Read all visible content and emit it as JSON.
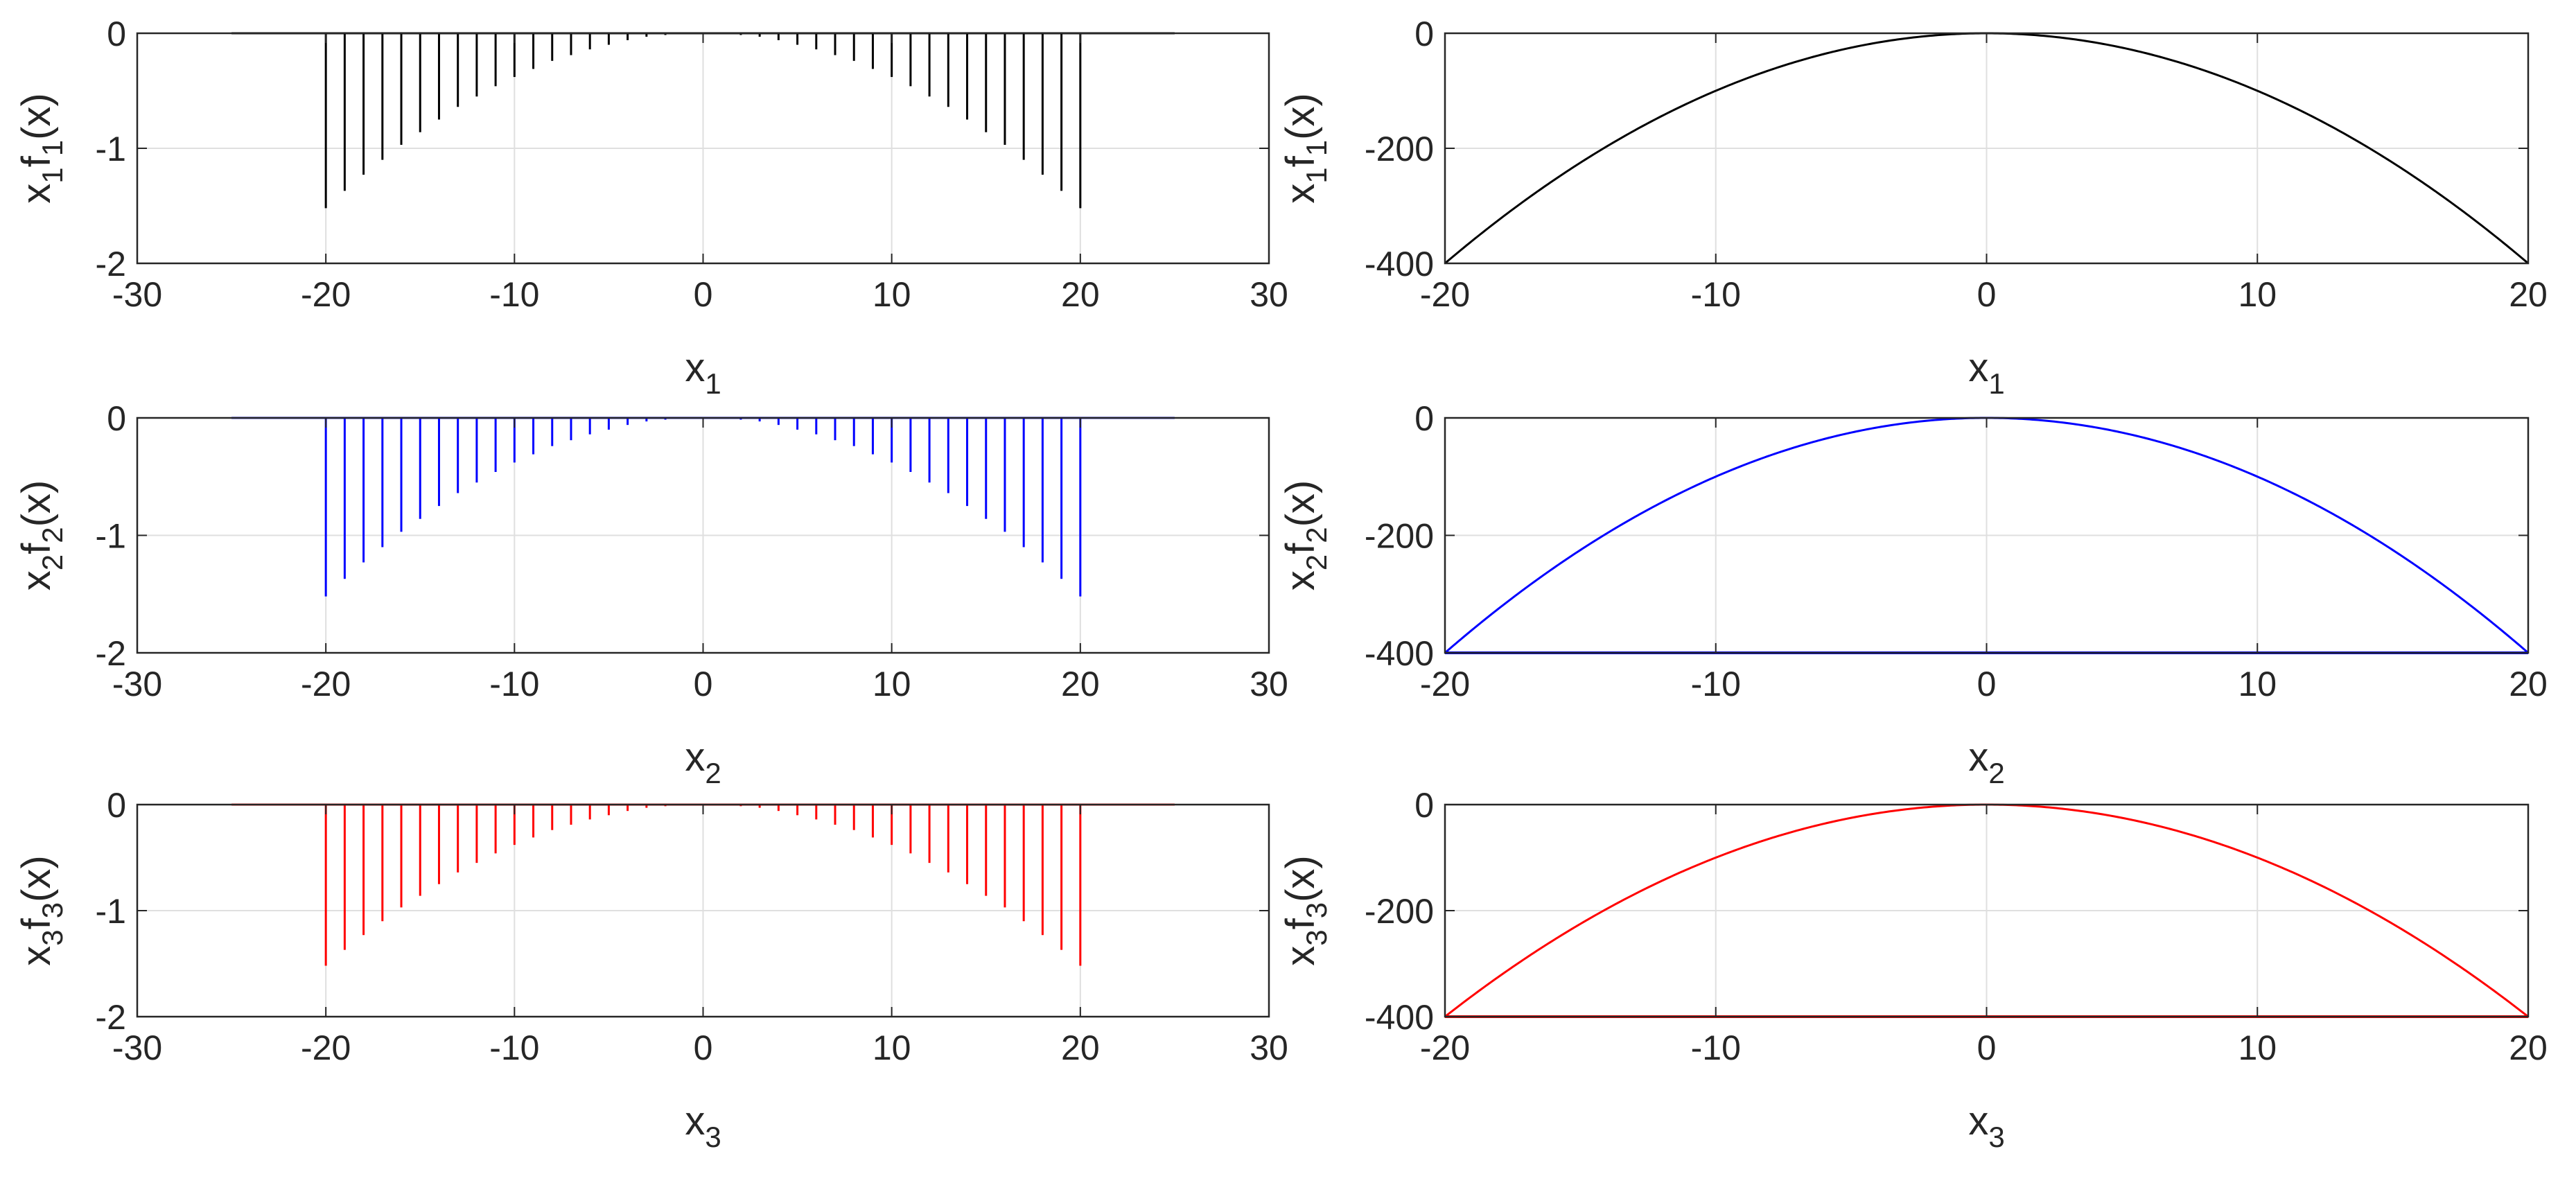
{
  "figure": {
    "title": ""
  },
  "chart_data": [
    {
      "id": "stem-1",
      "type": "stem",
      "color": "#000000",
      "xlabel": {
        "var": "x",
        "sub": "1"
      },
      "ylabel": {
        "a": "x",
        "asub": "1",
        "f": "f",
        "fsub": "1",
        "arg": "(x)"
      },
      "xlim": [
        -30,
        30
      ],
      "ylim": [
        -2,
        0
      ],
      "xticks": [
        "-30",
        "-20",
        "-10",
        "0",
        "10",
        "20",
        "30"
      ],
      "yticks": [
        "0",
        "-1",
        "-2"
      ],
      "baseline_range": [
        -25,
        25
      ],
      "stems": {
        "x": [
          -20,
          -19,
          -18,
          -17,
          -16,
          -15,
          -14,
          -13,
          -12,
          -11,
          -10,
          -9,
          -8,
          -7,
          -6,
          -5,
          -4,
          -3,
          -2,
          -1,
          0,
          1,
          2,
          3,
          4,
          5,
          6,
          7,
          8,
          9,
          10,
          11,
          12,
          13,
          14,
          15,
          16,
          17,
          18,
          19,
          20
        ],
        "y": [
          -1.52,
          -1.37,
          -1.23,
          -1.1,
          -0.97,
          -0.86,
          -0.75,
          -0.64,
          -0.55,
          -0.46,
          -0.38,
          -0.31,
          -0.24,
          -0.19,
          -0.14,
          -0.1,
          -0.06,
          -0.03,
          -0.015,
          -0.004,
          0,
          -0.004,
          -0.015,
          -0.03,
          -0.06,
          -0.1,
          -0.14,
          -0.19,
          -0.24,
          -0.31,
          -0.38,
          -0.46,
          -0.55,
          -0.64,
          -0.75,
          -0.86,
          -0.97,
          -1.1,
          -1.23,
          -1.37,
          -1.52
        ]
      },
      "grid": true
    },
    {
      "id": "curve-1",
      "type": "line",
      "color": "#000000",
      "xlabel": {
        "var": "x",
        "sub": "1"
      },
      "ylabel": {
        "a": "x",
        "asub": "1",
        "f": "f",
        "fsub": "1",
        "arg": "(x)"
      },
      "xlim": [
        -20,
        20
      ],
      "ylim": [
        -400,
        0
      ],
      "xticks": [
        "-20",
        "-10",
        "0",
        "10",
        "20"
      ],
      "yticks": [
        "0",
        "-200",
        "-400"
      ],
      "function": "y = -x^2",
      "samples": {
        "x": [
          -20,
          -15,
          -10,
          -5,
          0,
          5,
          10,
          15,
          20
        ],
        "y": [
          -400,
          -225,
          -100,
          -25,
          0,
          -25,
          -100,
          -225,
          -400
        ]
      },
      "floor_line": false,
      "grid": true
    },
    {
      "id": "stem-2",
      "type": "stem",
      "color": "#0000ff",
      "xlabel": {
        "var": "x",
        "sub": "2"
      },
      "ylabel": {
        "a": "x",
        "asub": "2",
        "f": "f",
        "fsub": "2",
        "arg": "(x)"
      },
      "xlim": [
        -30,
        30
      ],
      "ylim": [
        -2,
        0
      ],
      "xticks": [
        "-30",
        "-20",
        "-10",
        "0",
        "10",
        "20",
        "30"
      ],
      "yticks": [
        "0",
        "-1",
        "-2"
      ],
      "baseline_range": [
        -25,
        25
      ],
      "stems": {
        "x": [
          -20,
          -19,
          -18,
          -17,
          -16,
          -15,
          -14,
          -13,
          -12,
          -11,
          -10,
          -9,
          -8,
          -7,
          -6,
          -5,
          -4,
          -3,
          -2,
          -1,
          0,
          1,
          2,
          3,
          4,
          5,
          6,
          7,
          8,
          9,
          10,
          11,
          12,
          13,
          14,
          15,
          16,
          17,
          18,
          19,
          20
        ],
        "y": [
          -1.52,
          -1.37,
          -1.23,
          -1.1,
          -0.97,
          -0.86,
          -0.75,
          -0.64,
          -0.55,
          -0.46,
          -0.38,
          -0.31,
          -0.24,
          -0.19,
          -0.14,
          -0.1,
          -0.06,
          -0.03,
          -0.015,
          -0.004,
          0,
          -0.004,
          -0.015,
          -0.03,
          -0.06,
          -0.1,
          -0.14,
          -0.19,
          -0.24,
          -0.31,
          -0.38,
          -0.46,
          -0.55,
          -0.64,
          -0.75,
          -0.86,
          -0.97,
          -1.1,
          -1.23,
          -1.37,
          -1.52
        ]
      },
      "grid": true
    },
    {
      "id": "curve-2",
      "type": "line",
      "color": "#0000ff",
      "xlabel": {
        "var": "x",
        "sub": "2"
      },
      "ylabel": {
        "a": "x",
        "asub": "2",
        "f": "f",
        "fsub": "2",
        "arg": "(x)"
      },
      "xlim": [
        -20,
        20
      ],
      "ylim": [
        -400,
        0
      ],
      "xticks": [
        "-20",
        "-10",
        "0",
        "10",
        "20"
      ],
      "yticks": [
        "0",
        "-200",
        "-400"
      ],
      "function": "y = -x^2",
      "samples": {
        "x": [
          -20,
          -15,
          -10,
          -5,
          0,
          5,
          10,
          15,
          20
        ],
        "y": [
          -400,
          -225,
          -100,
          -25,
          0,
          -25,
          -100,
          -225,
          -400
        ]
      },
      "floor_line": true,
      "grid": true
    },
    {
      "id": "stem-3",
      "type": "stem",
      "color": "#ff0000",
      "xlabel": {
        "var": "x",
        "sub": "3"
      },
      "ylabel": {
        "a": "x",
        "asub": "3",
        "f": "f",
        "fsub": "3",
        "arg": "(x)"
      },
      "xlim": [
        -30,
        30
      ],
      "ylim": [
        -2,
        0
      ],
      "xticks": [
        "-30",
        "-20",
        "-10",
        "0",
        "10",
        "20",
        "30"
      ],
      "yticks": [
        "0",
        "-1",
        "-2"
      ],
      "baseline_range": [
        -25,
        25
      ],
      "stems": {
        "x": [
          -20,
          -19,
          -18,
          -17,
          -16,
          -15,
          -14,
          -13,
          -12,
          -11,
          -10,
          -9,
          -8,
          -7,
          -6,
          -5,
          -4,
          -3,
          -2,
          -1,
          0,
          1,
          2,
          3,
          4,
          5,
          6,
          7,
          8,
          9,
          10,
          11,
          12,
          13,
          14,
          15,
          16,
          17,
          18,
          19,
          20
        ],
        "y": [
          -1.52,
          -1.37,
          -1.23,
          -1.1,
          -0.97,
          -0.86,
          -0.75,
          -0.64,
          -0.55,
          -0.46,
          -0.38,
          -0.31,
          -0.24,
          -0.19,
          -0.14,
          -0.1,
          -0.06,
          -0.03,
          -0.015,
          -0.004,
          0,
          -0.004,
          -0.015,
          -0.03,
          -0.06,
          -0.1,
          -0.14,
          -0.19,
          -0.24,
          -0.31,
          -0.38,
          -0.46,
          -0.55,
          -0.64,
          -0.75,
          -0.86,
          -0.97,
          -1.1,
          -1.23,
          -1.37,
          -1.52
        ]
      },
      "grid": true
    },
    {
      "id": "curve-3",
      "type": "line",
      "color": "#ff0000",
      "xlabel": {
        "var": "x",
        "sub": "3"
      },
      "ylabel": {
        "a": "x",
        "asub": "3",
        "f": "f",
        "fsub": "3",
        "arg": "(x)"
      },
      "xlim": [
        -20,
        20
      ],
      "ylim": [
        -400,
        0
      ],
      "xticks": [
        "-20",
        "-10",
        "0",
        "10",
        "20"
      ],
      "yticks": [
        "0",
        "-200",
        "-400"
      ],
      "function": "y = -x^2",
      "samples": {
        "x": [
          -20,
          -15,
          -10,
          -5,
          0,
          5,
          10,
          15,
          20
        ],
        "y": [
          -400,
          -225,
          -100,
          -25,
          0,
          -25,
          -100,
          -225,
          -400
        ]
      },
      "floor_line": true,
      "grid": true
    }
  ]
}
